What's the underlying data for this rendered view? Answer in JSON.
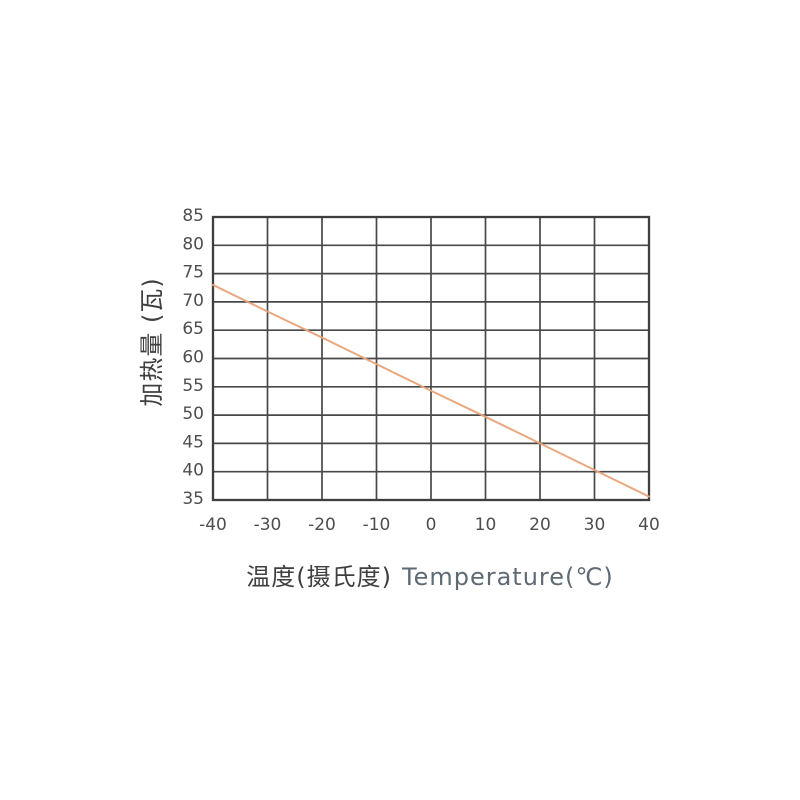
{
  "page": {
    "background": "#ffffff"
  },
  "chart_data": {
    "type": "line",
    "title": "",
    "xlabel": "温度(摄氏度) Temperature(℃)",
    "xlabel_cn": "温度(摄氏度)",
    "xlabel_en": "Temperature(℃)",
    "ylabel": "加热量 (瓦)",
    "xlim": [
      -40,
      40
    ],
    "ylim": [
      35,
      85
    ],
    "xticks": [
      -40,
      -30,
      -20,
      -10,
      0,
      10,
      20,
      30,
      40
    ],
    "yticks": [
      35,
      40,
      45,
      50,
      55,
      60,
      65,
      70,
      75,
      80,
      85
    ],
    "grid": true,
    "legend_position": "none",
    "series": [
      {
        "name": "heating-power-vs-temperature",
        "color": "#e7a379",
        "x": [
          -40,
          -30,
          -20,
          -10,
          0,
          10,
          20,
          30,
          40
        ],
        "y": [
          73,
          68.3,
          63.7,
          59,
          54.3,
          49.7,
          45,
          40.3,
          35.6
        ]
      }
    ],
    "grid_color": "#484848",
    "tick_label_color": "#4e4e4e"
  }
}
